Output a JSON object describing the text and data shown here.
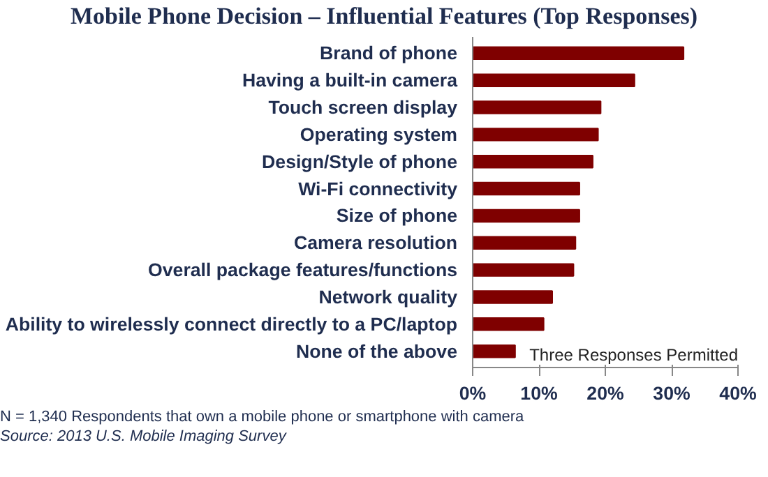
{
  "chart_data": {
    "type": "bar",
    "orientation": "horizontal",
    "title": "Mobile Phone Decision – Influential Features (Top Responses)",
    "categories": [
      "Brand of phone",
      "Having a built-in camera",
      "Touch screen display",
      "Operating system",
      "Design/Style of phone",
      "Wi-Fi connectivity",
      "Size of phone",
      "Camera resolution",
      "Overall package features/functions",
      "Network quality",
      "Ability to wirelessly connect directly to a PC/laptop",
      "None of the above"
    ],
    "values": [
      31.8,
      24.4,
      19.3,
      18.9,
      18.1,
      16.1,
      16.1,
      15.5,
      15.2,
      12.0,
      10.7,
      6.4
    ],
    "color": "#7f0000",
    "xlim": [
      0,
      40
    ],
    "xticks": [
      {
        "value": 0,
        "label": "0%"
      },
      {
        "value": 10,
        "label": "10%"
      },
      {
        "value": 20,
        "label": "20%"
      },
      {
        "value": 30,
        "label": "30%"
      },
      {
        "value": 40,
        "label": "40%"
      }
    ],
    "grid": false,
    "annotations": [
      "Three Responses Permitted",
      "N = 1,340 Respondents that own a mobile phone or smartphone with camera",
      "Source: 2013 U.S. Mobile Imaging Survey"
    ]
  }
}
